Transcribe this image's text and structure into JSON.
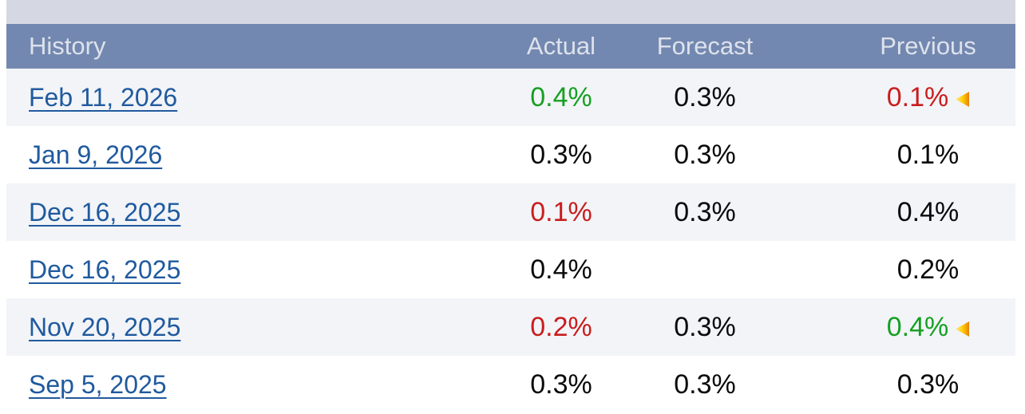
{
  "panel": {
    "top_strip_color": "#d5d8e3"
  },
  "table": {
    "header": {
      "bg_color": "#7388b0",
      "text_color": "#dde2ec",
      "columns": [
        "History",
        "Actual",
        "Forecast",
        "Previous"
      ]
    },
    "colors": {
      "row_bg": "#ffffff",
      "row_alt_bg": "#f2f4f8",
      "link_blue": "#205a9e",
      "positive_green": "#16a022",
      "negative_red": "#c91d1d",
      "neutral_black": "#0a0a0a",
      "revision_icon_tip": "#ffe894",
      "revision_icon_yellow": "#ffcc00",
      "revision_icon_orange": "#e87e04"
    },
    "icons": {
      "revision-arrow-icon": "left-pointing revision triangle"
    },
    "rows": [
      {
        "date": "Feb 11, 2026",
        "actual": "0.4%",
        "actual_color": "green",
        "forecast": "0.3%",
        "previous": "0.1%",
        "previous_color": "red",
        "previous_revised": true
      },
      {
        "date": "Jan 9, 2026",
        "actual": "0.3%",
        "actual_color": "black",
        "forecast": "0.3%",
        "previous": "0.1%",
        "previous_color": "black",
        "previous_revised": false
      },
      {
        "date": "Dec 16, 2025",
        "actual": "0.1%",
        "actual_color": "red",
        "forecast": "0.3%",
        "previous": "0.4%",
        "previous_color": "black",
        "previous_revised": false
      },
      {
        "date": "Dec 16, 2025",
        "actual": "0.4%",
        "actual_color": "black",
        "forecast": "",
        "previous": "0.2%",
        "previous_color": "black",
        "previous_revised": false
      },
      {
        "date": "Nov 20, 2025",
        "actual": "0.2%",
        "actual_color": "red",
        "forecast": "0.3%",
        "previous": "0.4%",
        "previous_color": "green",
        "previous_revised": true
      },
      {
        "date": "Sep 5, 2025",
        "actual": "0.3%",
        "actual_color": "black",
        "forecast": "0.3%",
        "previous": "0.3%",
        "previous_color": "black",
        "previous_revised": false
      }
    ]
  }
}
